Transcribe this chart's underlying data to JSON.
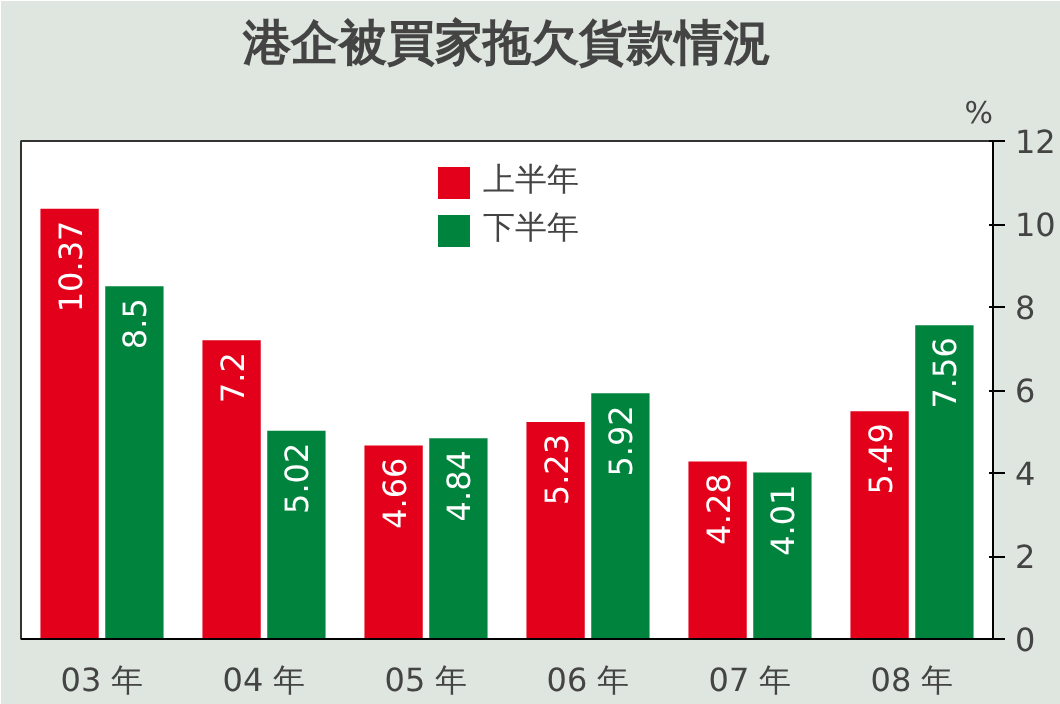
{
  "chart_data": {
    "type": "bar",
    "title": "港企被買家拖欠貨款情況",
    "ylabel": "%",
    "categories": [
      "03 年",
      "04 年",
      "05 年",
      "06 年",
      "07 年",
      "08 年"
    ],
    "series": [
      {
        "name": "上半年",
        "color": "#e3001b",
        "values": [
          10.37,
          7.2,
          4.66,
          5.23,
          4.28,
          5.49
        ]
      },
      {
        "name": "下半年",
        "color": "#00843d",
        "values": [
          8.5,
          5.02,
          4.84,
          5.92,
          4.01,
          7.56
        ]
      }
    ],
    "ylim": [
      0,
      12
    ],
    "yticks": [
      0,
      2,
      4,
      6,
      8,
      10,
      12
    ],
    "data_labels": true,
    "legend": "top",
    "grid": false
  }
}
